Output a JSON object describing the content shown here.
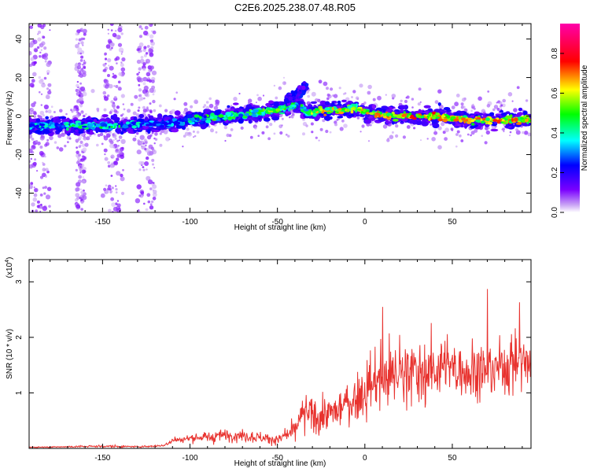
{
  "title": "C2E6.2025.238.07.48.R05",
  "chart_data": [
    {
      "type": "heatmap",
      "title": "C2E6.2025.238.07.48.R05",
      "xlabel": "Height of straight line (km)",
      "ylabel": "Frequency (Hz)",
      "xlim": [
        -192,
        95
      ],
      "ylim": [
        -50,
        48
      ],
      "x_ticks": [
        -150,
        -100,
        -50,
        0,
        50
      ],
      "x_tick_labels": [
        "-150",
        "-100",
        "-50",
        "0",
        "50"
      ],
      "y_ticks": [
        -40,
        -20,
        0,
        20,
        40
      ],
      "y_tick_labels": [
        "-40",
        "-20",
        "0",
        "20",
        "40"
      ],
      "colorbar": {
        "label": "Normalized spectral amplitude",
        "range": [
          0,
          0.95
        ],
        "ticks": [
          0.0,
          0.2,
          0.4,
          0.6,
          0.8
        ],
        "tick_labels": [
          "0.0",
          "0.2",
          "0.4",
          "0.6",
          "0.8"
        ],
        "colormap": "rainbow (purple-blue-cyan-green-yellow-red-magenta)"
      },
      "ridge": {
        "x": [
          -192,
          -150,
          -125,
          -110,
          -100,
          -80,
          -60,
          -45,
          -38,
          -32,
          -25,
          -15,
          -5,
          5,
          20,
          40,
          60,
          80,
          95
        ],
        "freq": [
          -5,
          -5,
          -4,
          -4,
          -2,
          0,
          2,
          4,
          6,
          2,
          3,
          3,
          4,
          1,
          0,
          0,
          -2,
          -2,
          -2
        ],
        "amplitude": [
          0.45,
          0.5,
          0.45,
          0.4,
          0.5,
          0.55,
          0.6,
          0.6,
          0.55,
          0.65,
          0.75,
          0.7,
          0.7,
          0.75,
          0.8,
          0.8,
          0.75,
          0.8,
          0.75
        ]
      },
      "noise_bands_x": [
        [
          -192,
          -180
        ],
        [
          -165,
          -160
        ],
        [
          -150,
          -138
        ],
        [
          -130,
          -120
        ]
      ]
    },
    {
      "type": "line",
      "xlabel": "Height of straight line (km)",
      "ylabel": "SNR (10 * v/v)",
      "multiplier_label": "(x10",
      "multiplier_exp": "4",
      "multiplier_close": ")",
      "xlim": [
        -192,
        95
      ],
      "ylim": [
        0,
        3.4
      ],
      "x_ticks": [
        -150,
        -100,
        -50,
        0,
        50
      ],
      "x_tick_labels": [
        "-150",
        "-100",
        "-50",
        "0",
        "50"
      ],
      "y_ticks": [
        1,
        2,
        3
      ],
      "y_tick_labels": [
        "1",
        "2",
        "3"
      ],
      "color": "#e8332f",
      "series_envelope": {
        "x": [
          -192,
          -170,
          -150,
          -130,
          -115,
          -110,
          -100,
          -85,
          -75,
          -60,
          -50,
          -40,
          -35,
          -25,
          -15,
          -5,
          0,
          10,
          20,
          30,
          40,
          50,
          60,
          70,
          80,
          88,
          95
        ],
        "mean": [
          0.02,
          0.03,
          0.04,
          0.03,
          0.05,
          0.15,
          0.18,
          0.22,
          0.25,
          0.2,
          0.15,
          0.3,
          0.65,
          0.55,
          0.7,
          0.9,
          1.05,
          1.3,
          1.4,
          1.35,
          1.45,
          1.45,
          1.4,
          1.4,
          1.5,
          1.6,
          1.55
        ],
        "spread": [
          0.01,
          0.02,
          0.03,
          0.02,
          0.03,
          0.08,
          0.1,
          0.15,
          0.18,
          0.15,
          0.12,
          0.3,
          0.5,
          0.4,
          0.5,
          0.6,
          0.7,
          0.9,
          0.95,
          0.85,
          0.8,
          0.8,
          0.75,
          0.7,
          0.8,
          0.75,
          0.6
        ]
      }
    }
  ]
}
